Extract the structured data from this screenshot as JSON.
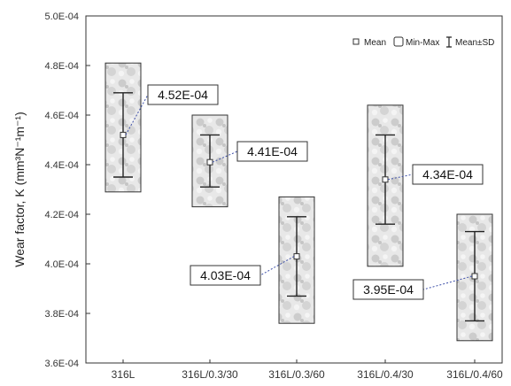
{
  "chart_data": {
    "type": "box",
    "categories": [
      "316L",
      "316L/0.3/30",
      "316L/0.3/60",
      "316L/0.4/30",
      "316L/0.4/60"
    ],
    "ylabel": "Wear factor, K (mm³N⁻¹m⁻¹)",
    "ylim": [
      0.00036,
      0.0005
    ],
    "yticks": [
      "3.6E-04",
      "3.8E-04",
      "4.0E-04",
      "4.2E-04",
      "4.4E-04",
      "4.6E-04",
      "4.8E-04",
      "5.0E-04"
    ],
    "ytick_values": [
      0.00036,
      0.00038,
      0.0004,
      0.00042,
      0.00044,
      0.00046,
      0.00048,
      0.0005
    ],
    "series": [
      {
        "name": "Mean",
        "values": [
          0.000452,
          0.000441,
          0.000403,
          0.000434,
          0.000395
        ]
      },
      {
        "name": "Min-Max",
        "min": [
          0.000429,
          0.000423,
          0.000376,
          0.000399,
          0.000369
        ],
        "max": [
          0.000481,
          0.00046,
          0.000427,
          0.000464,
          0.00042
        ]
      },
      {
        "name": "Mean±SD",
        "lower": [
          0.000435,
          0.000431,
          0.000387,
          0.000416,
          0.000377
        ],
        "upper": [
          0.000469,
          0.000452,
          0.000419,
          0.000452,
          0.000413
        ]
      }
    ],
    "annotations": [
      "4.52E-04",
      "4.41E-04",
      "4.03E-04",
      "4.34E-04",
      "3.95E-04"
    ],
    "legend": {
      "placement": "top-right",
      "entries": [
        "Mean",
        "Min-Max",
        "Mean±SD"
      ]
    },
    "grid": false
  }
}
